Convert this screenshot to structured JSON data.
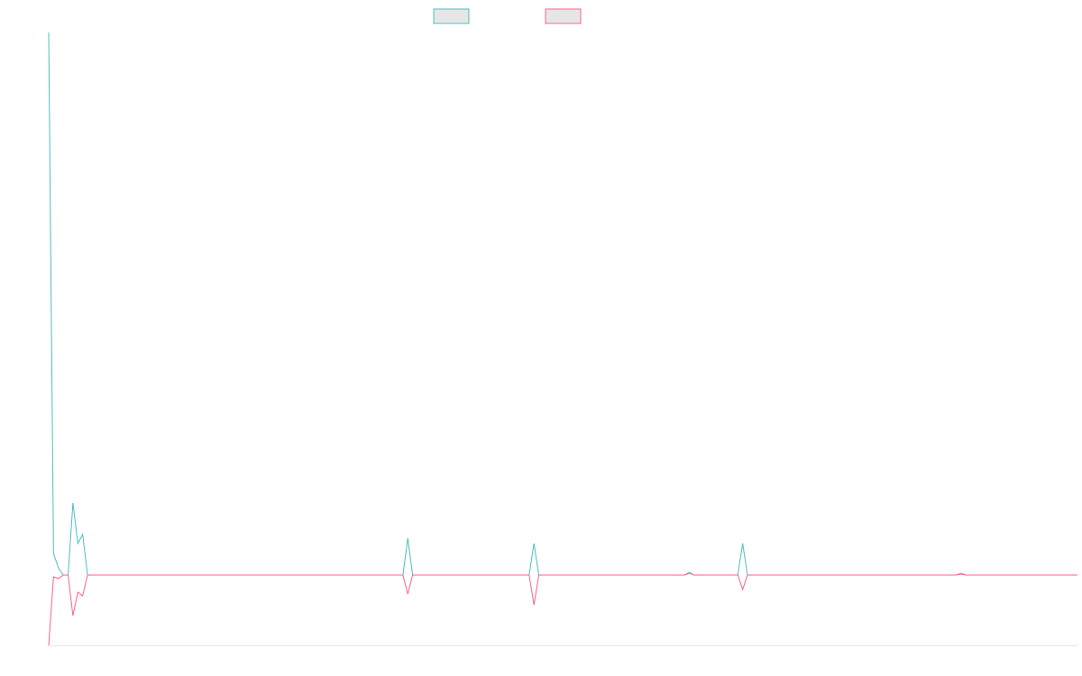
{
  "chart_data": {
    "type": "line",
    "x": [
      0,
      1,
      2,
      3,
      4,
      5,
      6,
      7,
      8,
      73,
      74,
      75,
      99,
      100,
      101,
      131,
      132,
      133,
      142,
      143,
      144,
      187,
      188,
      189,
      212
    ],
    "series": [
      {
        "color": "#4bc0c0",
        "values": [
          602,
          24,
          8,
          0,
          0,
          80,
          35,
          45,
          0,
          0,
          41,
          0,
          0,
          35,
          0,
          0,
          3,
          0,
          0,
          35,
          0,
          0,
          2,
          0,
          0
        ]
      },
      {
        "color": "#ff6384",
        "values": [
          -78,
          -2,
          -4,
          0,
          0,
          -45,
          -19,
          -23,
          0,
          0,
          -21,
          0,
          0,
          -33,
          0,
          0,
          2,
          0,
          0,
          -16,
          0,
          0,
          1,
          0,
          0
        ]
      }
    ],
    "xlim": [
      0,
      212
    ],
    "ylim": [
      -78,
      602
    ]
  }
}
